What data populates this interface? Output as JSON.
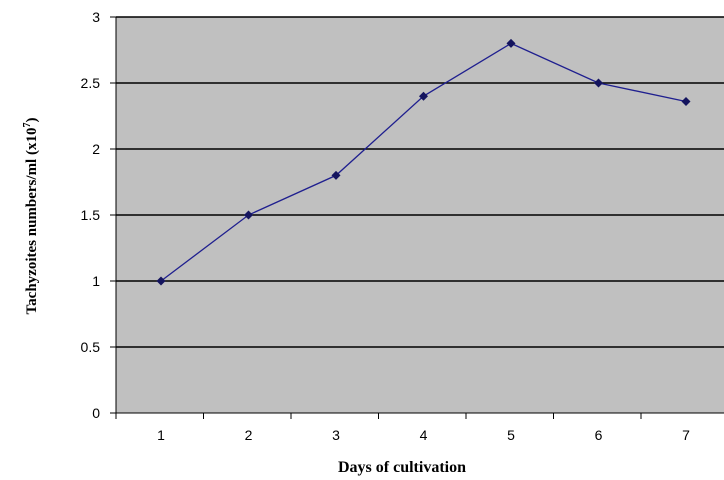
{
  "chart_data": {
    "type": "line",
    "title": "",
    "xlabel": "Days of cultivation",
    "ylabel": "Tachyzoites  numbers/ml (x10",
    "ylabel_superscript": "7",
    "ylabel_suffix": ")",
    "categories": [
      "1",
      "2",
      "3",
      "4",
      "5",
      "6",
      "7"
    ],
    "y_ticks": [
      "0",
      "0.5",
      "1",
      "1.5",
      "2",
      "2.5",
      "3"
    ],
    "ylim": [
      0,
      3
    ],
    "grid": true,
    "legend": "none",
    "series": [
      {
        "values": [
          1.0,
          1.5,
          1.8,
          2.4,
          2.8,
          2.5,
          2.36
        ]
      }
    ],
    "colors": {
      "plot_background": "#c0c0c0",
      "line": "#1f1f8f",
      "marker": "#14145e",
      "gridline": "#000000"
    }
  }
}
